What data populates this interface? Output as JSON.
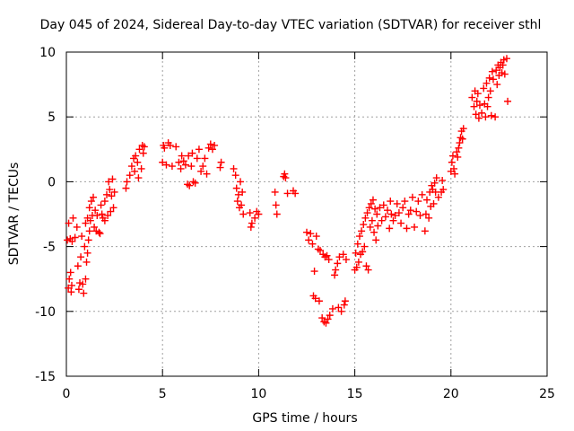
{
  "chart_data": {
    "type": "scatter",
    "title": "Day 045 of 2024, Sidereal Day-to-day VTEC variation (SDTVAR) for receiver sthl",
    "xlabel": "GPS time / hours",
    "ylabel": "SDTVAR / TECUs",
    "xlim": [
      0,
      25
    ],
    "ylim": [
      -15,
      10
    ],
    "xticks": [
      0,
      5,
      10,
      15,
      20,
      25
    ],
    "yticks": [
      -15,
      -10,
      -5,
      0,
      5,
      10
    ],
    "xtick_labels": [
      "0",
      "5",
      "10",
      "15",
      "20",
      "25"
    ],
    "ytick_labels": [
      "-15",
      "-10",
      "-5",
      "0",
      "5",
      "10"
    ],
    "grid": true,
    "marker": "+",
    "color": "#ff0000",
    "series": [
      {
        "name": "sthl",
        "points": [
          [
            0.05,
            -4.5
          ],
          [
            0.1,
            -8.2
          ],
          [
            0.15,
            -7.5
          ],
          [
            0.2,
            -4.4
          ],
          [
            0.25,
            -8.5
          ],
          [
            0.3,
            -4.6
          ],
          [
            0.35,
            -2.8
          ],
          [
            0.12,
            -3.2
          ],
          [
            0.22,
            -7.0
          ],
          [
            0.28,
            -8.0
          ],
          [
            0.45,
            -4.3
          ],
          [
            0.55,
            -3.5
          ],
          [
            0.6,
            -6.5
          ],
          [
            0.65,
            -8.3
          ],
          [
            0.7,
            -7.8
          ],
          [
            0.75,
            -5.8
          ],
          [
            0.8,
            -4.2
          ],
          [
            0.85,
            -7.9
          ],
          [
            0.9,
            -8.6
          ],
          [
            0.95,
            -5.0
          ],
          [
            1.0,
            -3.2
          ],
          [
            1.0,
            -7.5
          ],
          [
            1.05,
            -6.2
          ],
          [
            1.1,
            -2.8
          ],
          [
            1.1,
            -5.5
          ],
          [
            1.15,
            -4.5
          ],
          [
            1.2,
            -2.0
          ],
          [
            1.2,
            -3.8
          ],
          [
            1.25,
            -3.0
          ],
          [
            1.3,
            -1.5
          ],
          [
            1.35,
            -2.6
          ],
          [
            1.4,
            -1.2
          ],
          [
            1.45,
            -3.5
          ],
          [
            1.5,
            -2.2
          ],
          [
            1.55,
            -3.8
          ],
          [
            1.6,
            -2.6
          ],
          [
            1.7,
            -3.9
          ],
          [
            1.75,
            -4.0
          ],
          [
            1.8,
            -1.8
          ],
          [
            1.85,
            -2.5
          ],
          [
            1.9,
            -2.8
          ],
          [
            2.0,
            -1.5
          ],
          [
            2.0,
            -3.0
          ],
          [
            2.1,
            -1.0
          ],
          [
            2.15,
            -2.6
          ],
          [
            2.2,
            0.0
          ],
          [
            2.25,
            -0.6
          ],
          [
            2.3,
            -2.3
          ],
          [
            2.35,
            -1.1
          ],
          [
            2.4,
            0.2
          ],
          [
            2.45,
            -2.0
          ],
          [
            2.5,
            -0.8
          ],
          [
            3.1,
            -0.5
          ],
          [
            3.15,
            0.0
          ],
          [
            3.3,
            0.5
          ],
          [
            3.4,
            1.2
          ],
          [
            3.5,
            1.8
          ],
          [
            3.55,
            0.8
          ],
          [
            3.6,
            2.0
          ],
          [
            3.7,
            1.5
          ],
          [
            3.75,
            0.3
          ],
          [
            3.8,
            2.5
          ],
          [
            3.9,
            1.0
          ],
          [
            3.95,
            2.8
          ],
          [
            4.0,
            2.2
          ],
          [
            4.05,
            2.7
          ],
          [
            5.0,
            1.5
          ],
          [
            5.05,
            2.8
          ],
          [
            5.1,
            2.6
          ],
          [
            5.2,
            1.3
          ],
          [
            5.3,
            3.0
          ],
          [
            5.4,
            2.8
          ],
          [
            5.5,
            1.2
          ],
          [
            5.7,
            2.7
          ],
          [
            5.85,
            1.5
          ],
          [
            5.95,
            1.0
          ],
          [
            6.0,
            2.0
          ],
          [
            6.1,
            1.6
          ],
          [
            6.2,
            1.3
          ],
          [
            6.3,
            -0.2
          ],
          [
            6.35,
            2.0
          ],
          [
            6.4,
            -0.3
          ],
          [
            6.5,
            1.2
          ],
          [
            6.55,
            2.2
          ],
          [
            6.6,
            0.0
          ],
          [
            6.7,
            -0.1
          ],
          [
            6.8,
            1.8
          ],
          [
            6.9,
            2.5
          ],
          [
            7.0,
            0.8
          ],
          [
            7.1,
            1.2
          ],
          [
            7.2,
            1.8
          ],
          [
            7.3,
            0.6
          ],
          [
            7.4,
            2.6
          ],
          [
            7.5,
            2.9
          ],
          [
            7.6,
            2.5
          ],
          [
            7.7,
            2.8
          ],
          [
            8.0,
            1.1
          ],
          [
            8.05,
            1.5
          ],
          [
            8.7,
            1.0
          ],
          [
            8.8,
            0.5
          ],
          [
            8.85,
            -0.5
          ],
          [
            8.9,
            -1.5
          ],
          [
            8.95,
            -1.0
          ],
          [
            9.0,
            -2.0
          ],
          [
            9.05,
            0.0
          ],
          [
            9.1,
            -1.8
          ],
          [
            9.15,
            -0.8
          ],
          [
            9.2,
            -2.5
          ],
          [
            9.55,
            -2.4
          ],
          [
            9.6,
            -3.5
          ],
          [
            9.65,
            -3.2
          ],
          [
            9.8,
            -2.8
          ],
          [
            9.9,
            -2.3
          ],
          [
            10.0,
            -2.5
          ],
          [
            10.85,
            -0.8
          ],
          [
            10.9,
            -1.8
          ],
          [
            10.95,
            -2.5
          ],
          [
            11.3,
            0.4
          ],
          [
            11.35,
            0.6
          ],
          [
            11.4,
            0.3
          ],
          [
            11.5,
            -0.9
          ],
          [
            11.8,
            -0.7
          ],
          [
            11.9,
            -0.9
          ],
          [
            12.5,
            -3.9
          ],
          [
            12.6,
            -4.5
          ],
          [
            12.7,
            -4.0
          ],
          [
            12.8,
            -4.8
          ],
          [
            12.85,
            -8.8
          ],
          [
            12.9,
            -6.9
          ],
          [
            12.95,
            -9.0
          ],
          [
            13.0,
            -4.2
          ],
          [
            13.1,
            -5.2
          ],
          [
            13.15,
            -9.2
          ],
          [
            13.2,
            -5.3
          ],
          [
            13.3,
            -10.5
          ],
          [
            13.35,
            -5.6
          ],
          [
            13.4,
            -10.8
          ],
          [
            13.45,
            -5.8
          ],
          [
            13.5,
            -10.9
          ],
          [
            13.55,
            -5.7
          ],
          [
            13.6,
            -10.6
          ],
          [
            13.65,
            -6.0
          ],
          [
            13.7,
            -10.3
          ],
          [
            13.85,
            -9.8
          ],
          [
            13.95,
            -7.2
          ],
          [
            14.0,
            -6.8
          ],
          [
            14.1,
            -6.3
          ],
          [
            14.15,
            -9.7
          ],
          [
            14.2,
            -5.8
          ],
          [
            14.3,
            -10.0
          ],
          [
            14.4,
            -5.6
          ],
          [
            14.45,
            -9.5
          ],
          [
            14.5,
            -9.2
          ],
          [
            14.55,
            -6.0
          ],
          [
            15.0,
            -6.8
          ],
          [
            15.05,
            -5.5
          ],
          [
            15.1,
            -6.6
          ],
          [
            15.15,
            -4.8
          ],
          [
            15.2,
            -6.2
          ],
          [
            15.25,
            -4.2
          ],
          [
            15.3,
            -5.6
          ],
          [
            15.35,
            -3.8
          ],
          [
            15.4,
            -5.4
          ],
          [
            15.45,
            -3.3
          ],
          [
            15.5,
            -5.0
          ],
          [
            15.55,
            -2.8
          ],
          [
            15.6,
            -6.5
          ],
          [
            15.65,
            -2.4
          ],
          [
            15.7,
            -6.8
          ],
          [
            15.75,
            -2.0
          ],
          [
            15.8,
            -3.5
          ],
          [
            15.85,
            -1.7
          ],
          [
            15.9,
            -3.0
          ],
          [
            15.95,
            -1.4
          ],
          [
            16.0,
            -3.9
          ],
          [
            16.05,
            -2.1
          ],
          [
            16.1,
            -4.5
          ],
          [
            16.15,
            -2.5
          ],
          [
            16.2,
            -3.4
          ],
          [
            16.3,
            -2.0
          ],
          [
            16.4,
            -3.0
          ],
          [
            16.5,
            -1.8
          ],
          [
            16.6,
            -2.7
          ],
          [
            16.7,
            -2.2
          ],
          [
            16.8,
            -3.6
          ],
          [
            16.85,
            -1.5
          ],
          [
            16.9,
            -2.5
          ],
          [
            17.0,
            -3.0
          ],
          [
            17.1,
            -2.6
          ],
          [
            17.2,
            -1.7
          ],
          [
            17.3,
            -2.4
          ],
          [
            17.4,
            -3.2
          ],
          [
            17.5,
            -2.0
          ],
          [
            17.6,
            -1.5
          ],
          [
            17.7,
            -3.6
          ],
          [
            17.8,
            -2.5
          ],
          [
            17.9,
            -2.2
          ],
          [
            18.0,
            -1.2
          ],
          [
            18.1,
            -3.5
          ],
          [
            18.2,
            -2.3
          ],
          [
            18.3,
            -1.5
          ],
          [
            18.4,
            -2.6
          ],
          [
            18.5,
            -1.0
          ],
          [
            18.65,
            -3.8
          ],
          [
            18.7,
            -2.5
          ],
          [
            18.75,
            -1.4
          ],
          [
            18.85,
            -2.8
          ],
          [
            18.9,
            -0.8
          ],
          [
            18.95,
            -1.9
          ],
          [
            19.0,
            -0.3
          ],
          [
            19.05,
            -0.6
          ],
          [
            19.1,
            -1.7
          ],
          [
            19.15,
            -0.1
          ],
          [
            19.2,
            -0.8
          ],
          [
            19.25,
            0.3
          ],
          [
            19.35,
            -1.2
          ],
          [
            19.5,
            -0.8
          ],
          [
            19.55,
            0.1
          ],
          [
            19.6,
            -0.6
          ],
          [
            20.0,
            0.8
          ],
          [
            20.05,
            1.5
          ],
          [
            20.1,
            2.0
          ],
          [
            20.15,
            1.0
          ],
          [
            20.2,
            0.6
          ],
          [
            20.3,
            2.3
          ],
          [
            20.35,
            1.9
          ],
          [
            20.4,
            2.6
          ],
          [
            20.45,
            3.0
          ],
          [
            20.5,
            3.4
          ],
          [
            20.55,
            3.9
          ],
          [
            20.6,
            3.3
          ],
          [
            20.65,
            4.1
          ],
          [
            21.1,
            6.5
          ],
          [
            21.2,
            5.8
          ],
          [
            21.25,
            7.0
          ],
          [
            21.3,
            5.2
          ],
          [
            21.35,
            6.2
          ],
          [
            21.4,
            6.8
          ],
          [
            21.45,
            4.9
          ],
          [
            21.5,
            5.9
          ],
          [
            21.6,
            5.3
          ],
          [
            21.7,
            7.2
          ],
          [
            21.75,
            6.0
          ],
          [
            21.8,
            5.0
          ],
          [
            21.85,
            7.6
          ],
          [
            21.9,
            5.8
          ],
          [
            21.95,
            6.5
          ],
          [
            22.0,
            8.0
          ],
          [
            22.05,
            7.0
          ],
          [
            22.1,
            5.1
          ],
          [
            22.15,
            8.5
          ],
          [
            22.2,
            7.9
          ],
          [
            22.3,
            5.0
          ],
          [
            22.35,
            8.6
          ],
          [
            22.4,
            7.5
          ],
          [
            22.45,
            9.0
          ],
          [
            22.5,
            8.2
          ],
          [
            22.55,
            8.8
          ],
          [
            22.6,
            9.2
          ],
          [
            22.65,
            8.4
          ],
          [
            22.7,
            9.0
          ],
          [
            22.75,
            9.4
          ],
          [
            22.8,
            8.3
          ],
          [
            22.9,
            9.5
          ],
          [
            22.95,
            6.2
          ]
        ]
      }
    ]
  }
}
